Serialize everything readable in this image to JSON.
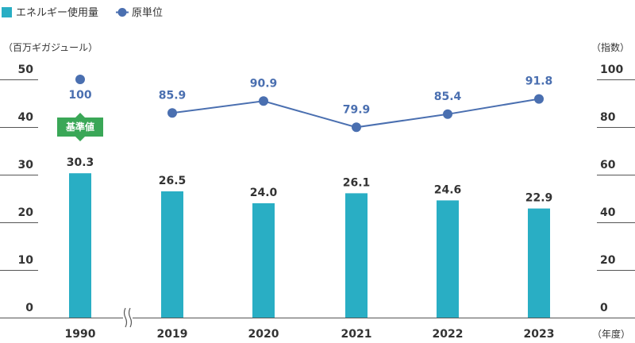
{
  "chart_data": {
    "type": "bar",
    "categories": [
      "1990",
      "2019",
      "2020",
      "2021",
      "2022",
      "2023"
    ],
    "series": [
      {
        "name": "エネルギー使用量",
        "type": "bar",
        "axis": "left",
        "color": "#29aec4",
        "values": [
          30.3,
          26.5,
          24.0,
          26.1,
          24.6,
          22.9
        ],
        "labels": [
          "30.3",
          "26.5",
          "24.0",
          "26.1",
          "24.6",
          "22.9"
        ]
      },
      {
        "name": "原単位",
        "type": "line",
        "axis": "right",
        "color": "#4a6fb0",
        "values": [
          100,
          85.9,
          90.9,
          79.9,
          85.4,
          91.8
        ],
        "labels": [
          "100",
          "85.9",
          "90.9",
          "79.9",
          "85.4",
          "91.8"
        ],
        "connected_from_index": 1
      }
    ],
    "y_left": {
      "unit_label": "（百万ギガジュール）",
      "range": [
        0,
        50
      ],
      "ticks": [
        "0",
        "10",
        "20",
        "30",
        "40",
        "50"
      ]
    },
    "y_right": {
      "unit_label": "（指数）",
      "range": [
        0,
        100
      ],
      "ticks": [
        "0",
        "20",
        "40",
        "60",
        "80",
        "100"
      ]
    },
    "x_unit_label": "（年度）",
    "axis_break_between": [
      "1990",
      "2019"
    ],
    "annotation": {
      "text": "基準値",
      "category": "1990",
      "color": "#3aa757"
    },
    "legend_placement": "top-left",
    "grid": "horizontal-short-ticks"
  }
}
